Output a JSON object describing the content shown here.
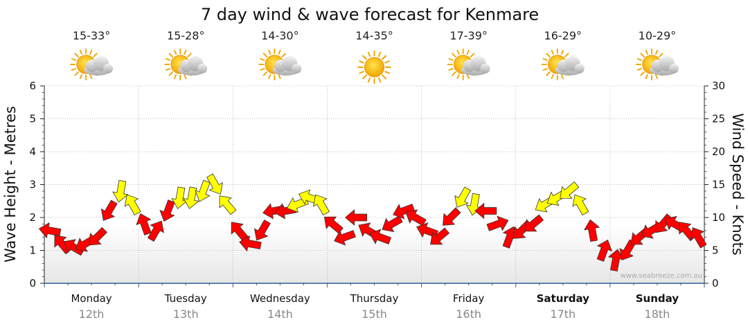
{
  "chart_data": {
    "type": "line",
    "title": "7 day wind & wave forecast for Kenmare",
    "ylabel_left": "Wave Height - Metres",
    "ylabel_right": "Wind Speed - Knots",
    "ylim_left": [
      0,
      6
    ],
    "ylim_right": [
      0,
      30
    ],
    "yticks_left": [
      "0",
      "1",
      "2",
      "3",
      "4",
      "5",
      "6"
    ],
    "yticks_right": [
      "0",
      "5",
      "10",
      "15",
      "20",
      "25",
      "30"
    ],
    "grid": true,
    "days": [
      {
        "name": "Monday",
        "date": "12th",
        "temp": "15-33°",
        "icon": "partly-cloudy-icon",
        "bold": false
      },
      {
        "name": "Tuesday",
        "date": "13th",
        "temp": "15-28°",
        "icon": "partly-cloudy-icon",
        "bold": false
      },
      {
        "name": "Wednesday",
        "date": "14th",
        "temp": "14-30°",
        "icon": "partly-cloudy-icon",
        "bold": false
      },
      {
        "name": "Thursday",
        "date": "15th",
        "temp": "14-35°",
        "icon": "sunny-icon",
        "bold": false
      },
      {
        "name": "Friday",
        "date": "16th",
        "temp": "17-39°",
        "icon": "partly-cloudy-icon",
        "bold": false
      },
      {
        "name": "Saturday",
        "date": "17th",
        "temp": "16-29°",
        "icon": "partly-cloudy-icon",
        "bold": true
      },
      {
        "name": "Sunday",
        "date": "18th",
        "temp": "10-29°",
        "icon": "partly-cloudy-icon",
        "bold": true
      }
    ],
    "wind_series": {
      "name": "Wind Speed (knots)",
      "day_offsets": [
        0.0,
        0.125,
        0.25,
        0.375,
        0.5,
        0.625,
        0.75,
        0.875,
        1.0,
        1.125,
        1.25,
        1.375,
        1.5,
        1.625,
        1.75,
        1.875,
        2.0,
        2.125,
        2.25,
        2.375,
        2.5,
        2.625,
        2.75,
        2.875,
        3.0,
        3.125,
        3.25,
        3.375,
        3.5,
        3.625,
        3.75,
        3.875,
        4.0,
        4.125,
        4.25,
        4.375,
        4.5,
        4.625,
        4.75,
        4.875,
        5.0,
        5.125,
        5.25,
        5.375,
        5.5,
        5.625,
        5.75,
        5.875,
        6.0,
        6.125,
        6.25,
        6.375,
        6.5,
        6.625,
        6.75,
        6.875
      ],
      "speed": [
        8,
        6,
        5.5,
        6,
        7,
        11,
        14,
        12,
        9,
        8,
        11,
        13,
        13,
        14,
        15,
        12,
        8,
        6,
        8,
        11,
        11,
        12,
        13,
        12,
        9,
        7,
        10,
        8,
        7,
        9,
        11,
        10,
        8,
        7,
        10,
        13,
        12,
        11,
        9,
        7,
        8,
        9,
        12,
        13,
        14,
        12,
        8,
        5,
        3.5,
        5,
        7,
        8,
        9,
        9,
        8,
        7
      ],
      "direction_deg": [
        100,
        140,
        120,
        60,
        45,
        30,
        10,
        150,
        160,
        210,
        20,
        10,
        10,
        20,
        330,
        140,
        140,
        100,
        30,
        80,
        80,
        70,
        110,
        150,
        130,
        70,
        90,
        120,
        110,
        60,
        70,
        120,
        110,
        50,
        45,
        30,
        10,
        90,
        250,
        200,
        45,
        50,
        60,
        60,
        50,
        150,
        170,
        200,
        190,
        30,
        50,
        60,
        40,
        120,
        140,
        150
      ],
      "color_rule": "yellow when speed >= 12 knots, otherwise red"
    },
    "watermark": "www.seabreeze.com.au"
  }
}
